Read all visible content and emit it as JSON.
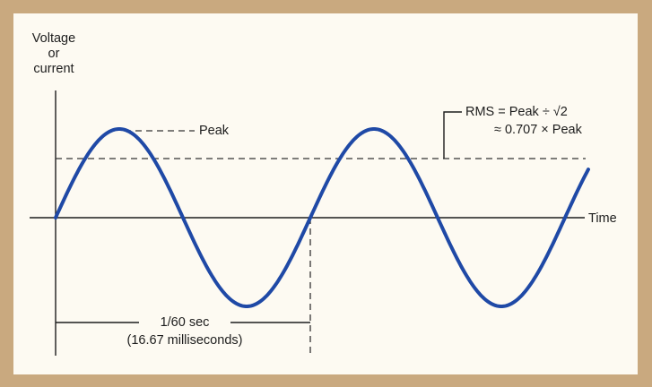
{
  "diagram": {
    "y_axis_label": [
      "Voltage",
      "or",
      "current"
    ],
    "x_axis_label": "Time",
    "peak_label": "Peak",
    "rms_line1": "RMS = Peak ÷ √2",
    "rms_line2": "≈ 0.707 × Peak",
    "period_line1": "1/60 sec",
    "period_line2": "(16.67 milliseconds)"
  },
  "colors": {
    "frame": "#c9a97f",
    "background": "#fdfaf2",
    "wave": "#1f49a6",
    "lines": "#1d1d1d"
  }
}
